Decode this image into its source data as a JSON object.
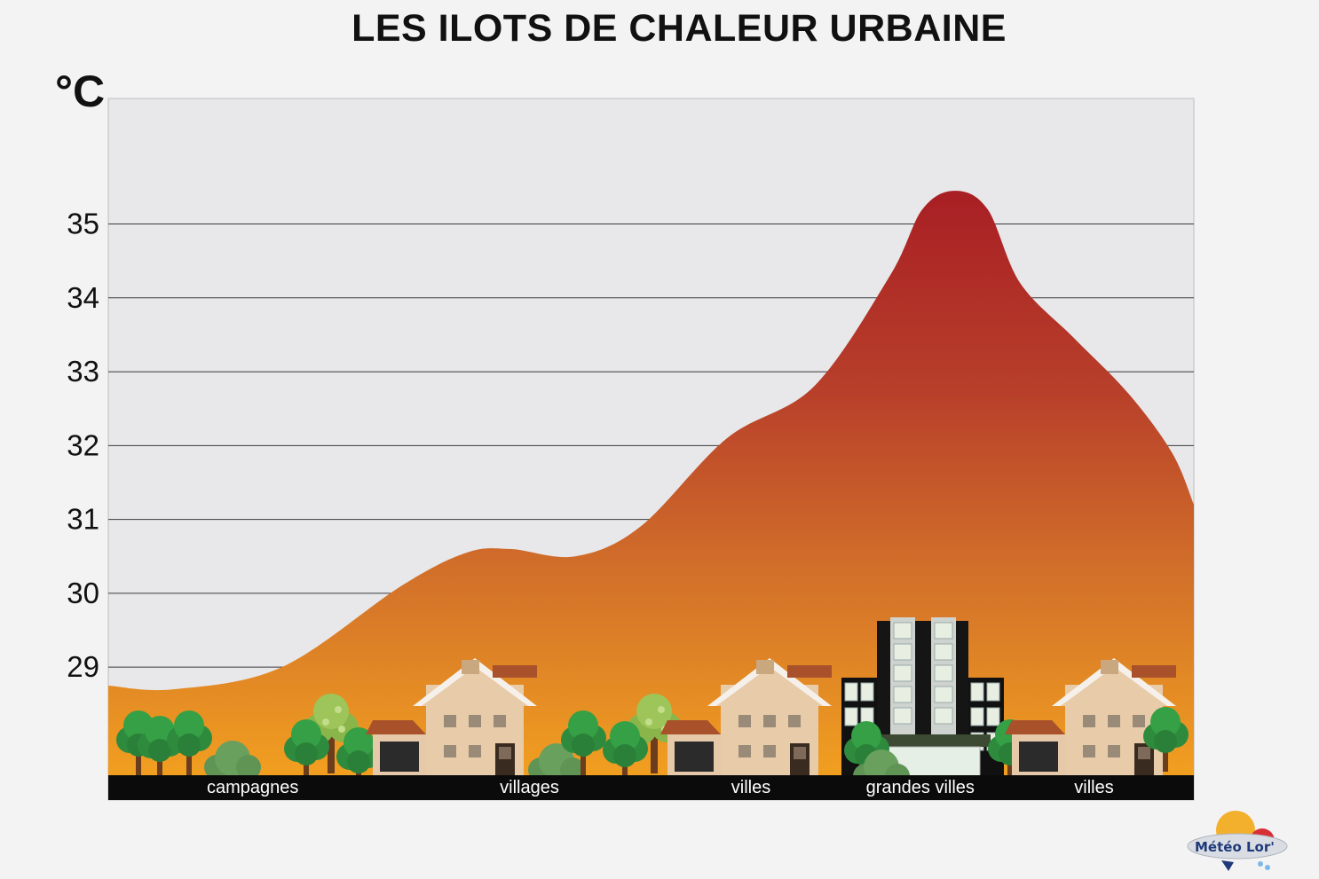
{
  "chart_data": {
    "type": "area",
    "title": "LES ILOTS DE CHALEUR URBAINE",
    "ylabel": "°C",
    "ylim": [
      27.2,
      36.7
    ],
    "yticks": [
      29,
      30,
      31,
      32,
      33,
      34,
      35
    ],
    "grid": true,
    "x": [
      0,
      0.06,
      0.16,
      0.27,
      0.33,
      0.37,
      0.43,
      0.49,
      0.57,
      0.65,
      0.72,
      0.75,
      0.78,
      0.81,
      0.84,
      0.89,
      0.94,
      0.98,
      1.0
    ],
    "y": [
      28.75,
      28.7,
      29.0,
      30.1,
      30.55,
      30.6,
      30.5,
      30.9,
      32.1,
      32.8,
      34.3,
      35.2,
      35.45,
      35.2,
      34.2,
      33.45,
      32.7,
      31.9,
      31.2
    ],
    "zones": [
      "campagnes",
      "villages",
      "villes",
      "grandes villes",
      "villes"
    ],
    "zone_centers": [
      0.133,
      0.388,
      0.592,
      0.748,
      0.908
    ]
  },
  "logo": {
    "name": "Météo Lor'"
  },
  "colors": {
    "plot_bg": "#e8e8ea",
    "grid": "#3a3a3a",
    "fill_top": "#a81e24",
    "fill_mid": "#c9602a",
    "fill_bottom": "#f2a020",
    "ground": "#0b0b0b"
  }
}
